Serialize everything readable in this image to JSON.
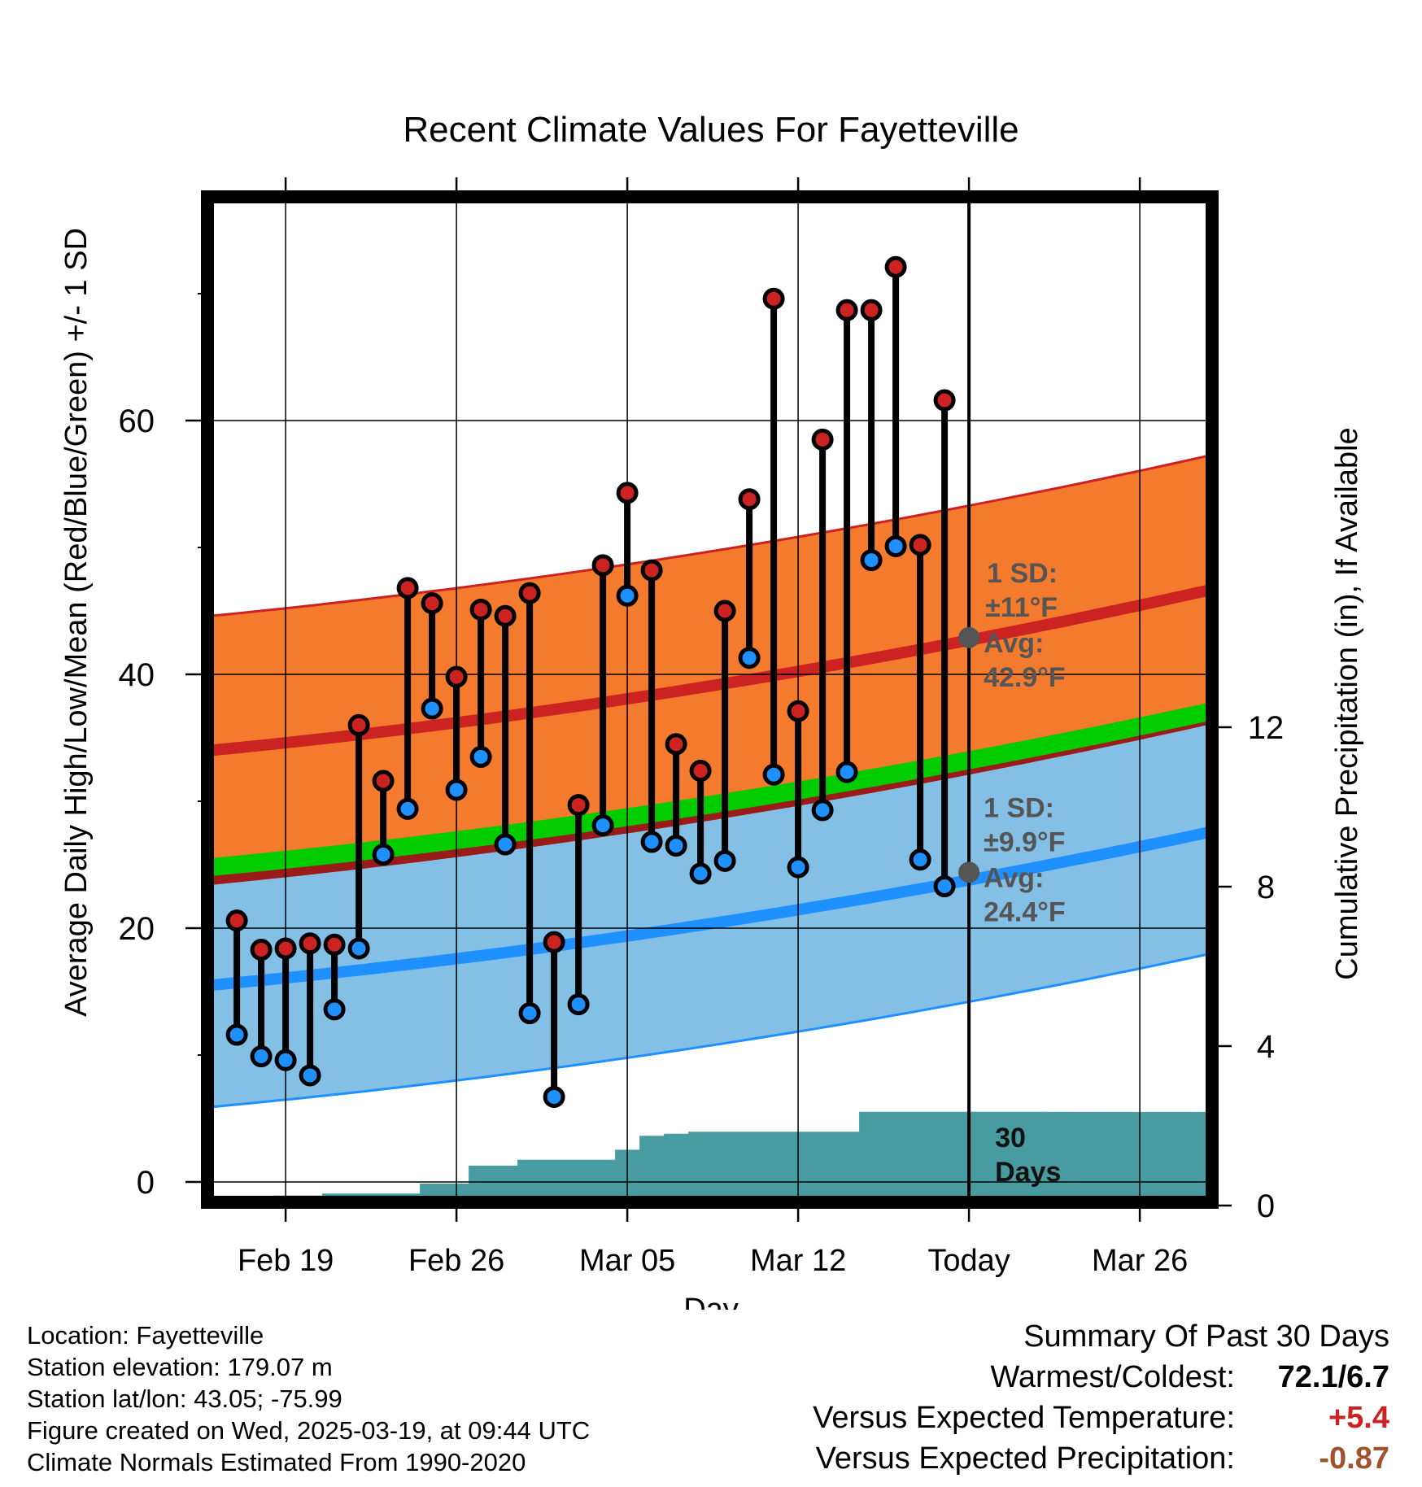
{
  "title": "Recent Climate Values For Fayetteville",
  "chart_data": {
    "type": "line",
    "title": "Recent Climate Values For Fayetteville",
    "xlabel": "Day",
    "ylabel": "Average Daily High/Low/Mean (Red/Blue/Green) +/- 1 SD",
    "y2label": "Cumulative Precipitation (in), If Available",
    "ylim": [
      -1.5,
      77.5
    ],
    "y2lim": [
      0,
      20.3
    ],
    "y_ticks": [
      0,
      20,
      40,
      60
    ],
    "y2_ticks": [
      0,
      4,
      8,
      12
    ],
    "x_ticks": [
      "Feb 19",
      "Feb 26",
      "Mar 05",
      "Mar 12",
      "Today",
      "Mar 26"
    ],
    "x_tick_days": [
      19,
      26,
      33,
      40,
      47,
      54
    ],
    "x_range": [
      15.9,
      57.9
    ],
    "today_day": 47,
    "daily": {
      "day": [
        17,
        18,
        19,
        20,
        21,
        22,
        23,
        24,
        25,
        26,
        27,
        28,
        29,
        30,
        31,
        32,
        33,
        34,
        35,
        36,
        37,
        38,
        39,
        40,
        41,
        42,
        43,
        44,
        45,
        46
      ],
      "high": [
        20.6,
        18.3,
        18.4,
        18.8,
        18.7,
        36.0,
        31.6,
        46.8,
        45.6,
        39.8,
        45.1,
        44.6,
        46.4,
        18.9,
        29.7,
        48.6,
        54.3,
        48.2,
        34.5,
        32.4,
        45.0,
        53.8,
        69.6,
        37.1,
        58.5,
        68.7,
        68.7,
        72.1,
        50.2,
        61.6
      ],
      "low": [
        11.6,
        9.9,
        9.6,
        8.4,
        13.6,
        18.4,
        25.8,
        29.4,
        37.3,
        30.9,
        33.5,
        26.6,
        13.3,
        6.7,
        14.0,
        28.1,
        46.2,
        26.8,
        26.5,
        24.3,
        25.3,
        41.3,
        32.1,
        24.8,
        29.3,
        32.3,
        49.0,
        50.1,
        25.4,
        23.3
      ]
    },
    "normals": {
      "high_avg": [
        34,
        47.1
      ],
      "high_sd": 10.6,
      "low_avg": [
        15.5,
        28
      ],
      "low_sd": 9.6,
      "mean_avg": [
        24.8,
        37.5
      ]
    },
    "precip": {
      "day": [
        16,
        17,
        18,
        19,
        20,
        21,
        22,
        23,
        24,
        25,
        26,
        27,
        28,
        29,
        30,
        31,
        32,
        33,
        34,
        35,
        36,
        37,
        38,
        39,
        40,
        41,
        42,
        43,
        44,
        45,
        46,
        47
      ],
      "cumulative": [
        0.05,
        0.2,
        0.2,
        0.25,
        0.25,
        0.3,
        0.3,
        0.3,
        0.3,
        0.55,
        0.55,
        1.0,
        1.0,
        1.15,
        1.15,
        1.15,
        1.15,
        1.4,
        1.75,
        1.8,
        1.85,
        1.85,
        1.85,
        1.85,
        1.85,
        1.85,
        1.85,
        2.35,
        2.35,
        2.35,
        2.35,
        2.35
      ]
    },
    "annotations": {
      "high": {
        "sd": "1 SD:",
        "sd_val": "±11°F",
        "avg": "Avg:",
        "avg_val": "42.9°F",
        "value": 42.9
      },
      "low": {
        "sd": "1 SD:",
        "sd_val": "±9.9°F",
        "avg": "Avg:",
        "avg_val": "24.4°F",
        "value": 24.4
      },
      "precip_period": "30\nDays"
    },
    "colors": {
      "high": "#cc2222",
      "low": "#1e90ff",
      "mean": "#00cc00",
      "high_band": "#f47a2e",
      "low_band": "#84c0e6",
      "overlap": "#9b1b1b",
      "precip": "#489ba1",
      "annotation": "#555555"
    },
    "grid": true
  },
  "footer": {
    "location": "Location: Fayetteville",
    "elevation": "Station elevation: 179.07 m",
    "latlon": "Station lat/lon: 43.05; -75.99",
    "created": "Figure created on Wed, 2025-03-19, at 09:44 UTC",
    "normals": "Climate Normals Estimated From 1990-2020"
  },
  "summary": {
    "title": "Summary Of Past 30 Days",
    "warmest_label": "Warmest/Coldest:",
    "warmest_value": "72.1/6.7",
    "temp_label": "Versus Expected Temperature:",
    "temp_value": "+5.4",
    "temp_color": "#cc2222",
    "precip_label": "Versus Expected Precipitation:",
    "precip_value": "-0.87",
    "precip_color": "#a0522d"
  }
}
